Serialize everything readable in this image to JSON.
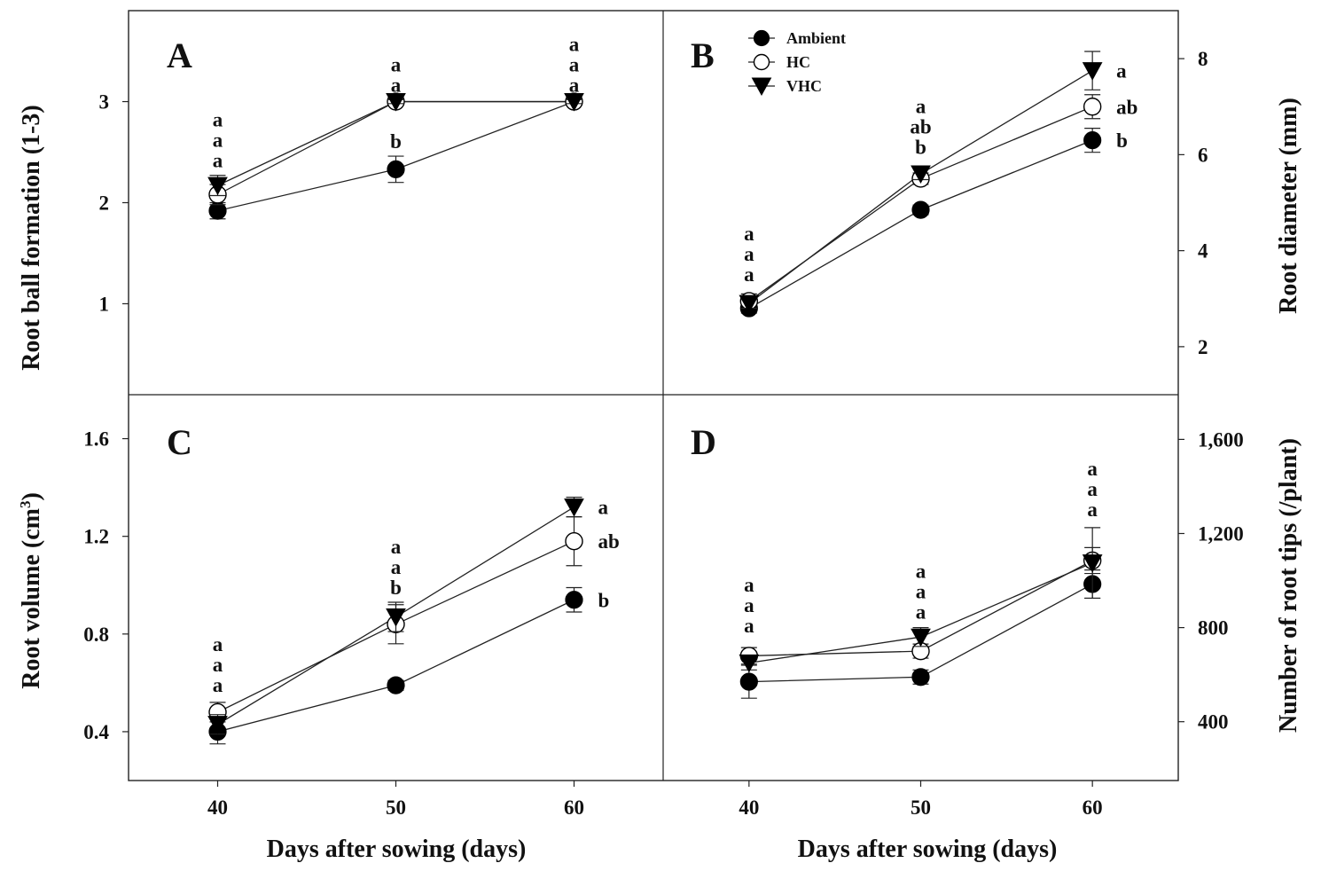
{
  "x_axis_title": "Days after sowing (days)",
  "legend": {
    "series": [
      {
        "name": "Ambient",
        "marker": "filled-circle"
      },
      {
        "name": "HC",
        "marker": "open-circle"
      },
      {
        "name": "VHC",
        "marker": "filled-triangle-down"
      }
    ]
  },
  "chart_data": [
    {
      "panel": "A",
      "type": "line",
      "x": [
        40,
        50,
        60
      ],
      "x_ticks": [
        "40",
        "50",
        "60"
      ],
      "ylabel": "Root ball formation (1-3)",
      "ylabel_side": "left",
      "ylim": [
        0.1,
        3.9
      ],
      "y_ticks": [
        1,
        2,
        3
      ],
      "y_tick_labels": [
        "1",
        "2",
        "3"
      ],
      "series": [
        {
          "name": "Ambient",
          "values": [
            1.92,
            2.33,
            3.0
          ],
          "errors": [
            0.08,
            0.13,
            0.02
          ]
        },
        {
          "name": "HC",
          "values": [
            2.08,
            3.0,
            3.0
          ],
          "errors": [
            0.1,
            0.02,
            0.02
          ]
        },
        {
          "name": "VHC",
          "values": [
            2.17,
            3.0,
            3.0
          ],
          "errors": [
            0.1,
            0.02,
            0.02
          ]
        }
      ],
      "annotations": [
        {
          "x": 40,
          "above": 2.27,
          "letters": [
            "a",
            "a",
            "a"
          ]
        },
        {
          "x": 50,
          "above": 3.02,
          "letters": [
            "a",
            "a"
          ]
        },
        {
          "x": 50,
          "above": 2.46,
          "letters": [
            "b"
          ]
        },
        {
          "x": 60,
          "above": 3.02,
          "letters": [
            "a",
            "a",
            "a"
          ]
        }
      ]
    },
    {
      "panel": "B",
      "type": "line",
      "x": [
        40,
        50,
        60
      ],
      "x_ticks": [
        "40",
        "50",
        "60"
      ],
      "ylabel": "Root diameter (mm)",
      "ylabel_side": "right",
      "ylim": [
        1.0,
        9.0
      ],
      "y_ticks": [
        2,
        4,
        6,
        8
      ],
      "y_tick_labels": [
        "2",
        "4",
        "6",
        "8"
      ],
      "series": [
        {
          "name": "Ambient",
          "values": [
            2.8,
            4.85,
            6.3
          ],
          "errors": [
            0.1,
            0.1,
            0.25
          ]
        },
        {
          "name": "HC",
          "values": [
            2.95,
            5.5,
            7.0
          ],
          "errors": [
            0.15,
            0.12,
            0.25
          ]
        },
        {
          "name": "VHC",
          "values": [
            2.9,
            5.6,
            7.75
          ],
          "errors": [
            0.1,
            0.12,
            0.4
          ]
        }
      ],
      "annotations": [
        {
          "x": 40,
          "above": 3.2,
          "letters": [
            "a",
            "a",
            "a"
          ]
        },
        {
          "x": 50,
          "above": 5.85,
          "letters": [
            "a",
            "ab",
            "b"
          ]
        },
        {
          "x": 60,
          "side": "right",
          "rows": [
            {
              "y": 7.75,
              "letter": "a"
            },
            {
              "y": 7.0,
              "letter": "ab"
            },
            {
              "y": 6.3,
              "letter": "b"
            }
          ]
        }
      ]
    },
    {
      "panel": "C",
      "type": "line",
      "x": [
        40,
        50,
        60
      ],
      "x_ticks": [
        "40",
        "50",
        "60"
      ],
      "ylabel": "Root volume (cm",
      "ylabel_sup": "3",
      "ylabel_after": ")",
      "ylabel_side": "left",
      "ylim": [
        0.2,
        1.78
      ],
      "y_ticks": [
        0.4,
        0.8,
        1.2,
        1.6
      ],
      "y_tick_labels": [
        "0.4",
        "0.8",
        "1.2",
        "1.6"
      ],
      "series": [
        {
          "name": "Ambient",
          "values": [
            0.4,
            0.59,
            0.94
          ],
          "errors": [
            0.05,
            0.02,
            0.05
          ]
        },
        {
          "name": "HC",
          "values": [
            0.48,
            0.84,
            1.18
          ],
          "errors": [
            0.04,
            0.08,
            0.1
          ]
        },
        {
          "name": "VHC",
          "values": [
            0.43,
            0.87,
            1.32
          ],
          "errors": [
            0.04,
            0.06,
            0.04
          ]
        }
      ],
      "annotations": [
        {
          "x": 40,
          "above": 0.53,
          "letters": [
            "a",
            "a",
            "a"
          ]
        },
        {
          "x": 50,
          "above": 0.93,
          "letters": [
            "a",
            "a",
            "b"
          ]
        },
        {
          "x": 60,
          "side": "right",
          "rows": [
            {
              "y": 1.32,
              "letter": "a"
            },
            {
              "y": 1.18,
              "letter": "ab"
            },
            {
              "y": 0.94,
              "letter": "b"
            }
          ]
        }
      ]
    },
    {
      "panel": "D",
      "type": "line",
      "x": [
        40,
        50,
        60
      ],
      "x_ticks": [
        "40",
        "50",
        "60"
      ],
      "ylabel": "Number of root tips (/plant)",
      "ylabel_side": "right",
      "ylim": [
        150,
        1790
      ],
      "y_ticks": [
        400,
        800,
        1200,
        1600
      ],
      "y_tick_labels": [
        "400",
        "800",
        "1,200",
        "1,600"
      ],
      "series": [
        {
          "name": "Ambient",
          "values": [
            570,
            590,
            985
          ],
          "errors": [
            70,
            30,
            60
          ]
        },
        {
          "name": "HC",
          "values": [
            680,
            700,
            1085
          ],
          "errors": [
            35,
            30,
            55
          ]
        },
        {
          "name": "VHC",
          "values": [
            650,
            760,
            1075
          ],
          "errors": [
            30,
            40,
            150
          ]
        }
      ],
      "annotations": [
        {
          "x": 40,
          "above": 745,
          "letters": [
            "a",
            "a",
            "a"
          ]
        },
        {
          "x": 50,
          "above": 805,
          "letters": [
            "a",
            "a",
            "a"
          ]
        },
        {
          "x": 60,
          "above": 1240,
          "letters": [
            "a",
            "a",
            "a"
          ]
        }
      ]
    }
  ]
}
